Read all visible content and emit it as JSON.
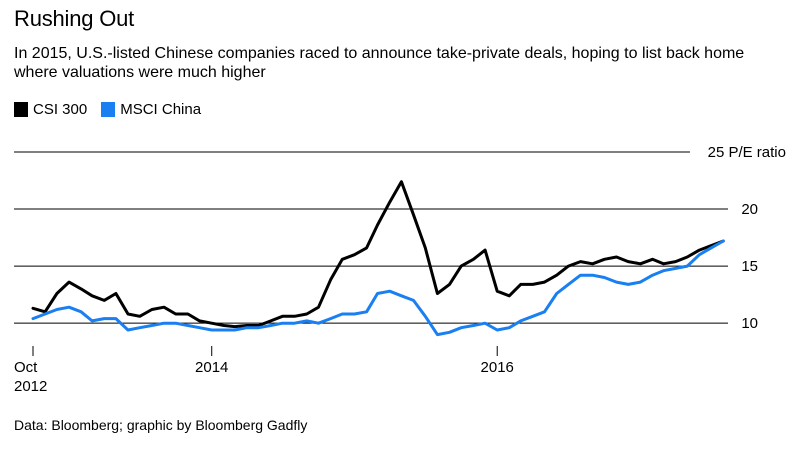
{
  "title": "Rushing Out",
  "subtitle": "In 2015, U.S.-listed Chinese companies raced to announce take-private deals, hoping to list back home where valuations were much higher",
  "source": "Data: Bloomberg; graphic by Bloomberg Gadfly",
  "colors": {
    "csi": "#000000",
    "msci": "#1a7ff0",
    "grid": "#000000"
  },
  "chart_data": {
    "type": "line",
    "title": "Rushing Out",
    "ylabel": "P/E ratio",
    "y_unit_label": "25 P/E ratio",
    "ylim": [
      8,
      25
    ],
    "xlim": [
      "2012-10-01",
      "2017-08-31"
    ],
    "yticks": [
      10,
      15,
      20,
      25
    ],
    "ytick_labels": [
      "10",
      "15",
      "20",
      "25 P/E ratio"
    ],
    "xticks": [
      {
        "date": "2012-10-01",
        "label": "Oct",
        "label2": "2012"
      },
      {
        "date": "2014-01-01",
        "label": "2014",
        "label2": ""
      },
      {
        "date": "2016-01-01",
        "label": "2016",
        "label2": ""
      }
    ],
    "legend_position": "top-left",
    "grid": true,
    "series": [
      {
        "name": "CSI 300",
        "x": [
          "2012-10-01",
          "2012-11-01",
          "2012-12-01",
          "2013-01-01",
          "2013-02-01",
          "2013-03-01",
          "2013-04-01",
          "2013-05-01",
          "2013-06-01",
          "2013-07-01",
          "2013-08-01",
          "2013-09-01",
          "2013-10-01",
          "2013-11-01",
          "2013-12-01",
          "2014-01-01",
          "2014-02-01",
          "2014-03-01",
          "2014-04-01",
          "2014-05-01",
          "2014-06-01",
          "2014-07-01",
          "2014-08-01",
          "2014-09-01",
          "2014-10-01",
          "2014-11-01",
          "2014-12-01",
          "2015-01-01",
          "2015-02-01",
          "2015-03-01",
          "2015-04-01",
          "2015-05-01",
          "2015-06-01",
          "2015-07-01",
          "2015-08-01",
          "2015-09-01",
          "2015-10-01",
          "2015-11-01",
          "2015-12-01",
          "2016-01-01",
          "2016-02-01",
          "2016-03-01",
          "2016-04-01",
          "2016-05-01",
          "2016-06-01",
          "2016-07-01",
          "2016-08-01",
          "2016-09-01",
          "2016-10-01",
          "2016-11-01",
          "2016-12-01",
          "2017-01-01",
          "2017-02-01",
          "2017-03-01",
          "2017-04-01",
          "2017-05-01",
          "2017-06-01",
          "2017-07-01",
          "2017-08-01"
        ],
        "values": [
          11.3,
          11.0,
          12.6,
          13.6,
          13.0,
          12.4,
          12.0,
          12.6,
          10.8,
          10.6,
          11.2,
          11.4,
          10.8,
          10.8,
          10.2,
          10.0,
          9.8,
          9.7,
          9.8,
          9.8,
          10.2,
          10.6,
          10.6,
          10.8,
          11.4,
          13.8,
          15.6,
          16.0,
          16.6,
          18.6,
          20.6,
          22.4,
          19.5,
          16.6,
          12.6,
          13.4,
          15.0,
          15.6,
          16.4,
          12.8,
          12.4,
          13.4,
          13.4,
          13.6,
          14.2,
          15.0,
          15.4,
          15.2,
          15.6,
          15.8,
          15.4,
          15.2,
          15.6,
          15.2,
          15.4,
          15.8,
          16.4,
          16.8,
          17.2
        ]
      },
      {
        "name": "MSCI China",
        "x": [
          "2012-10-01",
          "2012-11-01",
          "2012-12-01",
          "2013-01-01",
          "2013-02-01",
          "2013-03-01",
          "2013-04-01",
          "2013-05-01",
          "2013-06-01",
          "2013-07-01",
          "2013-08-01",
          "2013-09-01",
          "2013-10-01",
          "2013-11-01",
          "2013-12-01",
          "2014-01-01",
          "2014-02-01",
          "2014-03-01",
          "2014-04-01",
          "2014-05-01",
          "2014-06-01",
          "2014-07-01",
          "2014-08-01",
          "2014-09-01",
          "2014-10-01",
          "2014-11-01",
          "2014-12-01",
          "2015-01-01",
          "2015-02-01",
          "2015-03-01",
          "2015-04-01",
          "2015-05-01",
          "2015-06-01",
          "2015-07-01",
          "2015-08-01",
          "2015-09-01",
          "2015-10-01",
          "2015-11-01",
          "2015-12-01",
          "2016-01-01",
          "2016-02-01",
          "2016-03-01",
          "2016-04-01",
          "2016-05-01",
          "2016-06-01",
          "2016-07-01",
          "2016-08-01",
          "2016-09-01",
          "2016-10-01",
          "2016-11-01",
          "2016-12-01",
          "2017-01-01",
          "2017-02-01",
          "2017-03-01",
          "2017-04-01",
          "2017-05-01",
          "2017-06-01",
          "2017-07-01",
          "2017-08-01"
        ],
        "values": [
          10.4,
          10.8,
          11.2,
          11.4,
          11.0,
          10.2,
          10.4,
          10.4,
          9.4,
          9.6,
          9.8,
          10.0,
          10.0,
          9.8,
          9.6,
          9.4,
          9.4,
          9.4,
          9.6,
          9.6,
          9.8,
          10.0,
          10.0,
          10.2,
          10.0,
          10.4,
          10.8,
          10.8,
          11.0,
          12.6,
          12.8,
          12.4,
          12.0,
          10.6,
          9.0,
          9.2,
          9.6,
          9.8,
          10.0,
          9.4,
          9.6,
          10.2,
          10.6,
          11.0,
          12.6,
          13.4,
          14.2,
          14.2,
          14.0,
          13.6,
          13.4,
          13.6,
          14.2,
          14.6,
          14.8,
          15.0,
          16.0,
          16.6,
          17.2
        ]
      }
    ]
  }
}
